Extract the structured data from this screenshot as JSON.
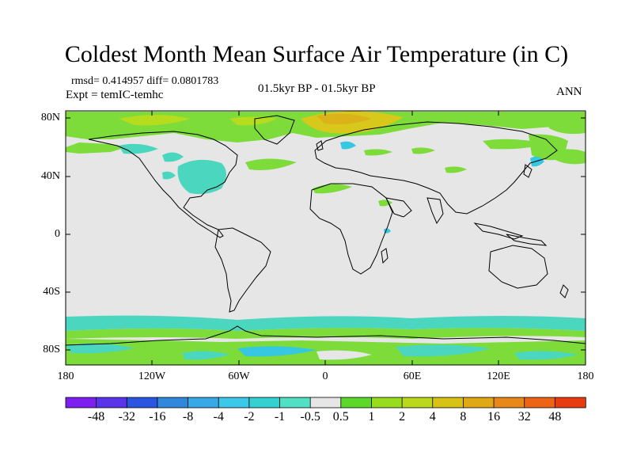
{
  "title": "Coldest Month Mean Surface Air Temperature (in C)",
  "stats": "rmsd= 0.414957 diff= 0.0801783",
  "experiment": "Expt = temIC-temhc",
  "period": "01.5kyr BP - 01.5kyr BP",
  "season": "ANN",
  "colors": {
    "background_map": "#e6e6e6",
    "land_outline": "#000000",
    "neutral": "#e6e6e6",
    "cool_teal": "#4bd6c0",
    "cool_cyan": "#36c8e0",
    "warm_lightgreen": "#7ddc3a",
    "warm_yellowgreen": "#b6dc1e",
    "warm_tan": "#d8c81c"
  },
  "map": {
    "projection": "cylindrical-equidistant",
    "lon_range": [
      -180,
      180
    ],
    "lat_range": [
      -90,
      90
    ],
    "lat_ticks": [
      "80N",
      "40N",
      "0",
      "40S",
      "80S"
    ],
    "lon_ticks": [
      "180",
      "120W",
      "60W",
      "0",
      "60E",
      "120E",
      "180"
    ]
  },
  "colorbar": {
    "colors": [
      "#7d1ff0",
      "#5a34e8",
      "#2a55e0",
      "#2f88dc",
      "#38a8e6",
      "#3cc8e8",
      "#33d2d0",
      "#52e0c4",
      "#e6e6e6",
      "#5cd82a",
      "#98dc1e",
      "#bcd81c",
      "#d8c214",
      "#e0a814",
      "#e88818",
      "#ec6414",
      "#e83c10"
    ],
    "labels": [
      "-48",
      "-32",
      "-16",
      "-8",
      "-4",
      "-2",
      "-1",
      "-0.5",
      "0.5",
      "1",
      "2",
      "4",
      "8",
      "16",
      "32",
      "48"
    ]
  }
}
